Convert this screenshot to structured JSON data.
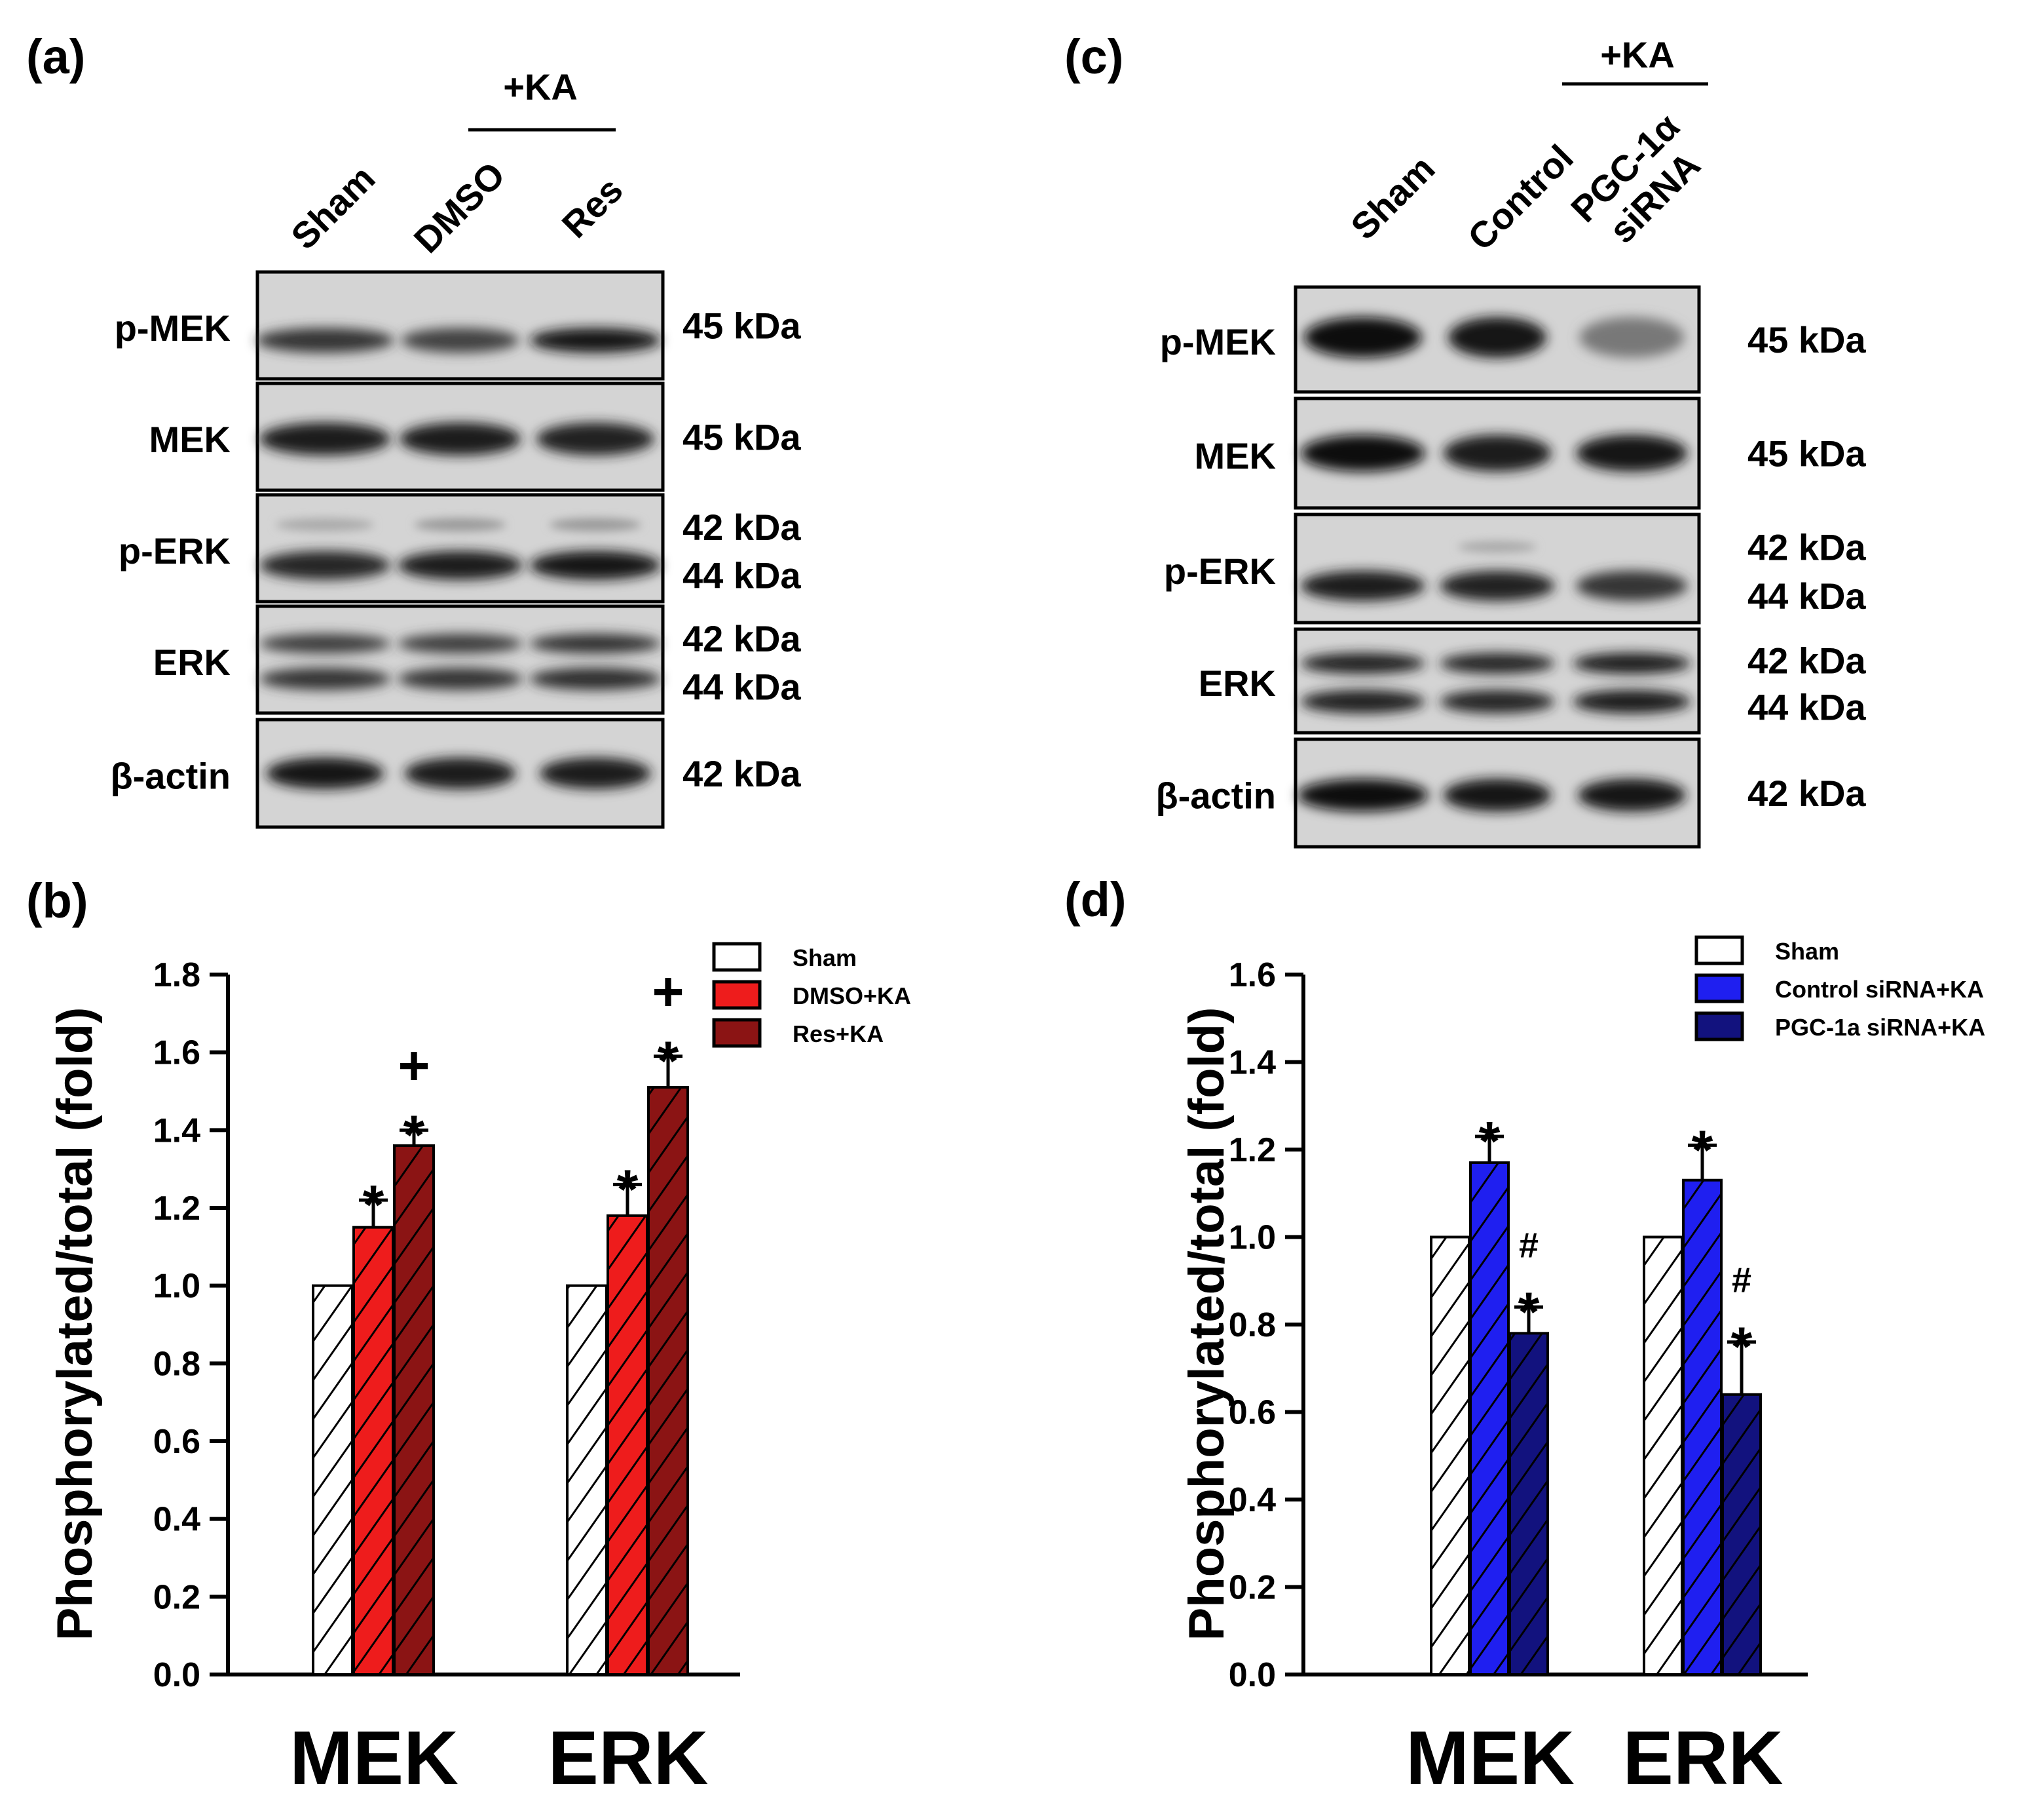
{
  "panels": {
    "a": {
      "label": "(a)",
      "treatment": "+KA",
      "lanes": [
        "Sham",
        "DMSO",
        "Res"
      ],
      "rows": [
        {
          "name": "p-MEK",
          "kda": [
            "45 kDa"
          ]
        },
        {
          "name": "MEK",
          "kda": [
            "45 kDa"
          ]
        },
        {
          "name": "p-ERK",
          "kda": [
            "42 kDa",
            "44 kDa"
          ]
        },
        {
          "name": "ERK",
          "kda": [
            "42 kDa",
            "44 kDa"
          ]
        },
        {
          "name": "β-actin",
          "kda": [
            "42 kDa"
          ]
        }
      ]
    },
    "c": {
      "label": "(c)",
      "treatment": "+KA",
      "lanes": [
        "Sham",
        "Control",
        "PGC-1α siRNA"
      ],
      "rows": [
        {
          "name": "p-MEK",
          "kda": [
            "45 kDa"
          ]
        },
        {
          "name": "MEK",
          "kda": [
            "45 kDa"
          ]
        },
        {
          "name": "p-ERK",
          "kda": [
            "42 kDa",
            "44 kDa"
          ]
        },
        {
          "name": "ERK",
          "kda": [
            "42 kDa",
            "44 kDa"
          ]
        },
        {
          "name": "β-actin",
          "kda": [
            "42 kDa"
          ]
        }
      ]
    },
    "b": {
      "label": "(b)"
    },
    "d": {
      "label": "(d)"
    }
  },
  "chart_data": [
    {
      "panel": "b",
      "type": "bar",
      "title": "",
      "xlabel": "",
      "ylabel": "Phosphorylated/total (fold)",
      "ylim": [
        0,
        1.8
      ],
      "yticks": [
        "0.0",
        "0.2",
        "0.4",
        "0.6",
        "0.8",
        "1.0",
        "1.2",
        "1.4",
        "1.6",
        "1.8"
      ],
      "categories": [
        "MEK",
        "ERK"
      ],
      "legend_position": "top-right",
      "series": [
        {
          "name": "Sham",
          "color": "#ffffff",
          "values": [
            1.0,
            1.0
          ],
          "errors": [
            0,
            0
          ],
          "annotations": [
            "",
            ""
          ]
        },
        {
          "name": "DMSO+KA",
          "color": "#ee1c1c",
          "values": [
            1.15,
            1.18
          ],
          "errors": [
            0.07,
            0.08
          ],
          "annotations": [
            "*",
            "*"
          ]
        },
        {
          "name": "Res+KA",
          "color": "#8b1414",
          "values": [
            1.36,
            1.51
          ],
          "errors": [
            0.04,
            0.08
          ],
          "annotations": [
            "*+",
            "*+"
          ]
        }
      ]
    },
    {
      "panel": "d",
      "type": "bar",
      "title": "",
      "xlabel": "",
      "ylabel": "Phosphorylated/total (fold)",
      "ylim": [
        0,
        1.6
      ],
      "yticks": [
        "0.0",
        "0.2",
        "0.4",
        "0.6",
        "0.8",
        "1.0",
        "1.2",
        "1.4",
        "1.6"
      ],
      "categories": [
        "MEK",
        "ERK"
      ],
      "legend_position": "top-right",
      "series": [
        {
          "name": "Sham",
          "color": "#ffffff",
          "values": [
            1.0,
            1.0
          ],
          "errors": [
            0,
            0
          ],
          "annotations": [
            "",
            ""
          ]
        },
        {
          "name": "Control siRNA+KA",
          "color": "#1f1ff0",
          "values": [
            1.17,
            1.13
          ],
          "errors": [
            0.06,
            0.08
          ],
          "annotations": [
            "*",
            "*"
          ]
        },
        {
          "name": "PGC-1a siRNA+KA",
          "color": "#12127e",
          "values": [
            0.78,
            0.64
          ],
          "errors": [
            0.06,
            0.12
          ],
          "annotations": [
            "*#",
            "*#"
          ]
        }
      ]
    }
  ]
}
